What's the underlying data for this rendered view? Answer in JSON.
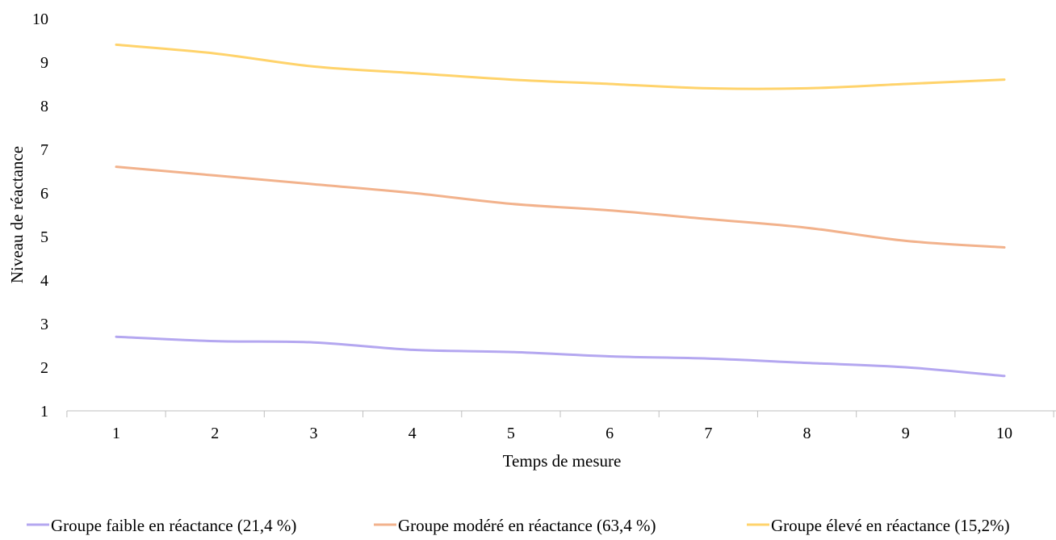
{
  "chart_data": {
    "type": "line",
    "title": "",
    "xlabel": "Temps de mesure",
    "ylabel": "Niveau de réactance",
    "x": [
      1,
      2,
      3,
      4,
      5,
      6,
      7,
      8,
      9,
      10
    ],
    "xticks": [
      "1",
      "2",
      "3",
      "4",
      "5",
      "6",
      "7",
      "8",
      "9",
      "10"
    ],
    "yticks": [
      "1",
      "2",
      "3",
      "4",
      "5",
      "6",
      "7",
      "8",
      "9",
      "10"
    ],
    "ylim": [
      1,
      10
    ],
    "grid": false,
    "legend_position": "bottom",
    "series": [
      {
        "name": "Groupe faible en réactance (21,4 %)",
        "color": "#b4a7f0",
        "values": [
          2.7,
          2.6,
          2.57,
          2.4,
          2.35,
          2.25,
          2.2,
          2.1,
          2.0,
          1.8
        ]
      },
      {
        "name": "Groupe modéré en réactance (63,4 %)",
        "color": "#f2b28c",
        "values": [
          6.6,
          6.4,
          6.2,
          6.0,
          5.75,
          5.6,
          5.4,
          5.2,
          4.9,
          4.75
        ]
      },
      {
        "name": "Groupe élevé en réactance (15,2%)",
        "color": "#ffd36b",
        "values": [
          9.4,
          9.2,
          8.9,
          8.75,
          8.6,
          8.5,
          8.4,
          8.4,
          8.5,
          8.6
        ]
      }
    ]
  }
}
